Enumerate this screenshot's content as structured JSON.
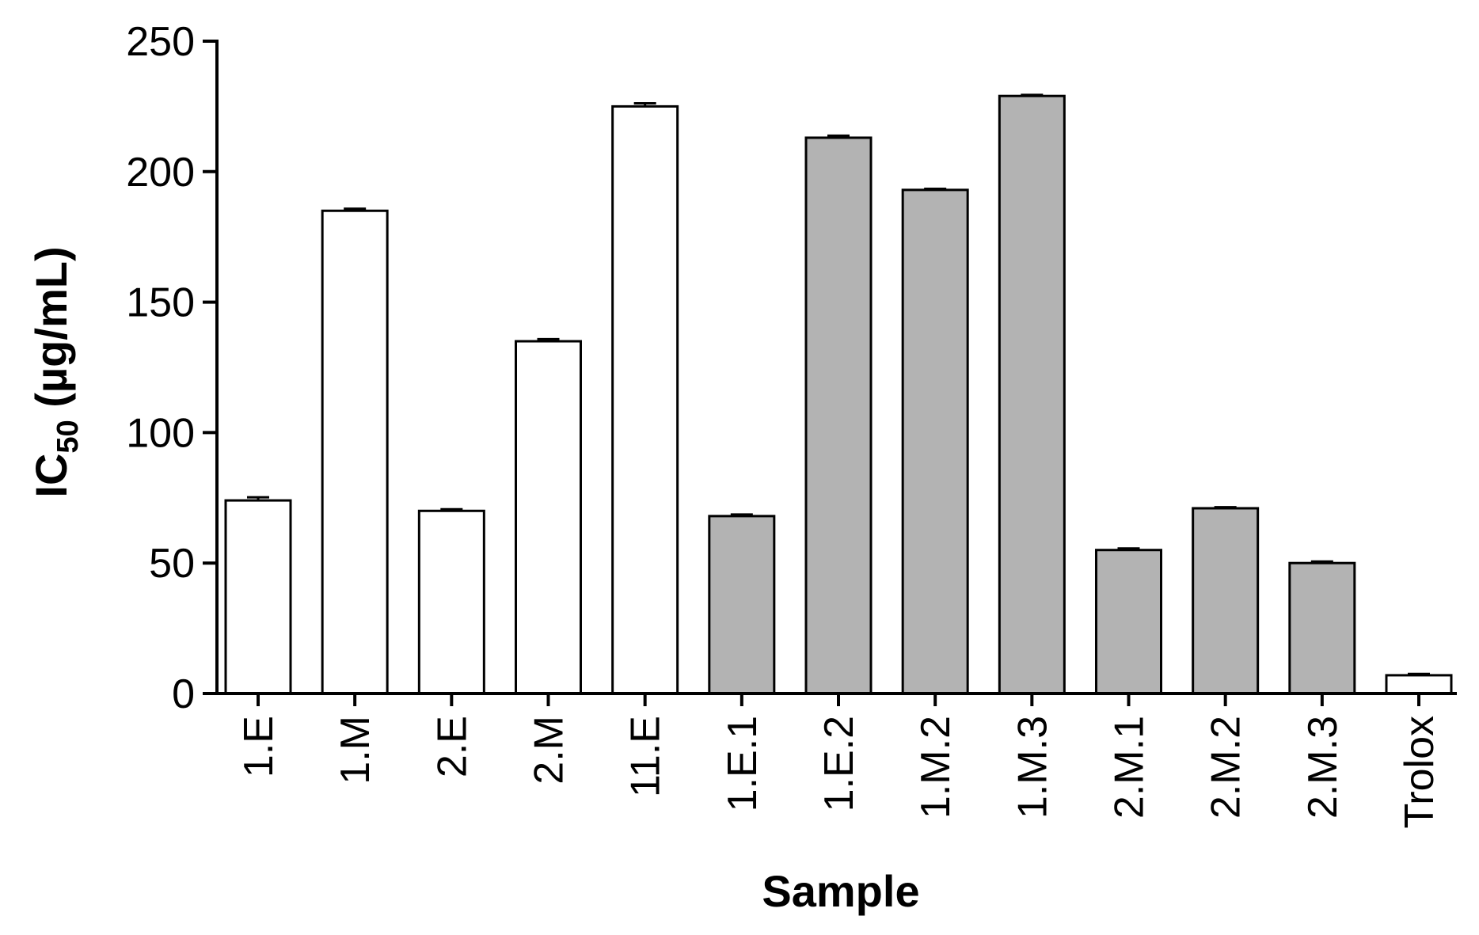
{
  "chart_data": {
    "type": "bar",
    "xlabel": "Sample",
    "ylabel_main": "IC",
    "ylabel_sub": "50",
    "ylabel_unit": " (µg/mL)",
    "ylim": [
      0,
      250
    ],
    "yticks": [
      0,
      50,
      100,
      150,
      200,
      250
    ],
    "grid": false,
    "categories": [
      "1.E",
      "1.M",
      "2.E",
      "2.M",
      "11.E",
      "1.E.1",
      "1.E.2",
      "1.M.2",
      "1.M.3",
      "2.M.1",
      "2.M.2",
      "2.M.3",
      "Trolox"
    ],
    "values": [
      74,
      185,
      70,
      135,
      225,
      68,
      213,
      193,
      229,
      55,
      71,
      50,
      7
    ],
    "errors": [
      1.2,
      0.8,
      0.6,
      0.8,
      1.2,
      0.6,
      0.8,
      0.4,
      0.4,
      0.6,
      0.4,
      0.6,
      0.5
    ],
    "bar_fills": [
      "#ffffff",
      "#ffffff",
      "#ffffff",
      "#ffffff",
      "#ffffff",
      "#b3b3b3",
      "#b3b3b3",
      "#b3b3b3",
      "#b3b3b3",
      "#b3b3b3",
      "#b3b3b3",
      "#b3b3b3",
      "#ffffff"
    ],
    "bar_stroke": "#000000"
  }
}
